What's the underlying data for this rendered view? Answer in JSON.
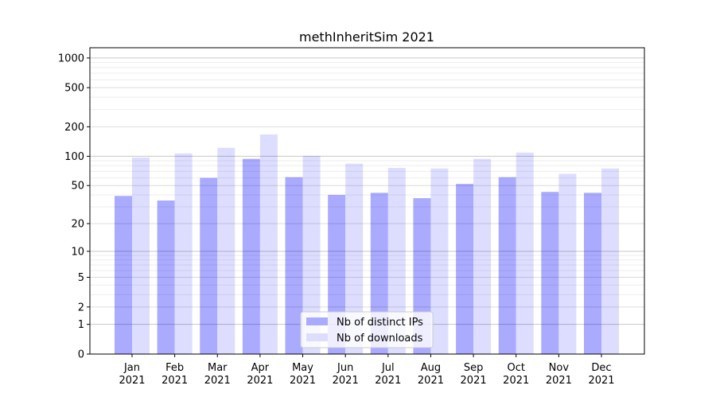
{
  "chart_data": {
    "type": "bar",
    "title": "methInheritSim 2021",
    "xlabel": "",
    "ylabel": "",
    "yscale": "log10(1+y)",
    "ylim": [
      0,
      1270
    ],
    "yticks": [
      0,
      1,
      2,
      5,
      10,
      20,
      50,
      100,
      200,
      500,
      1000
    ],
    "grid": true,
    "legend_position": "lower center",
    "categories": [
      "Jan\n2021",
      "Feb\n2021",
      "Mar\n2021",
      "Apr\n2021",
      "May\n2021",
      "Jun\n2021",
      "Jul\n2021",
      "Aug\n2021",
      "Sep\n2021",
      "Oct\n2021",
      "Nov\n2021",
      "Dec\n2021"
    ],
    "series": [
      {
        "name": "Nb of distinct IPs",
        "color": "#aaaaff",
        "values": [
          39,
          35,
          60,
          94,
          61,
          40,
          42,
          37,
          52,
          61,
          43,
          42
        ]
      },
      {
        "name": "Nb of downloads",
        "color": "#ddddff",
        "values": [
          97,
          107,
          122,
          167,
          101,
          84,
          76,
          75,
          94,
          109,
          66,
          75
        ]
      }
    ]
  }
}
